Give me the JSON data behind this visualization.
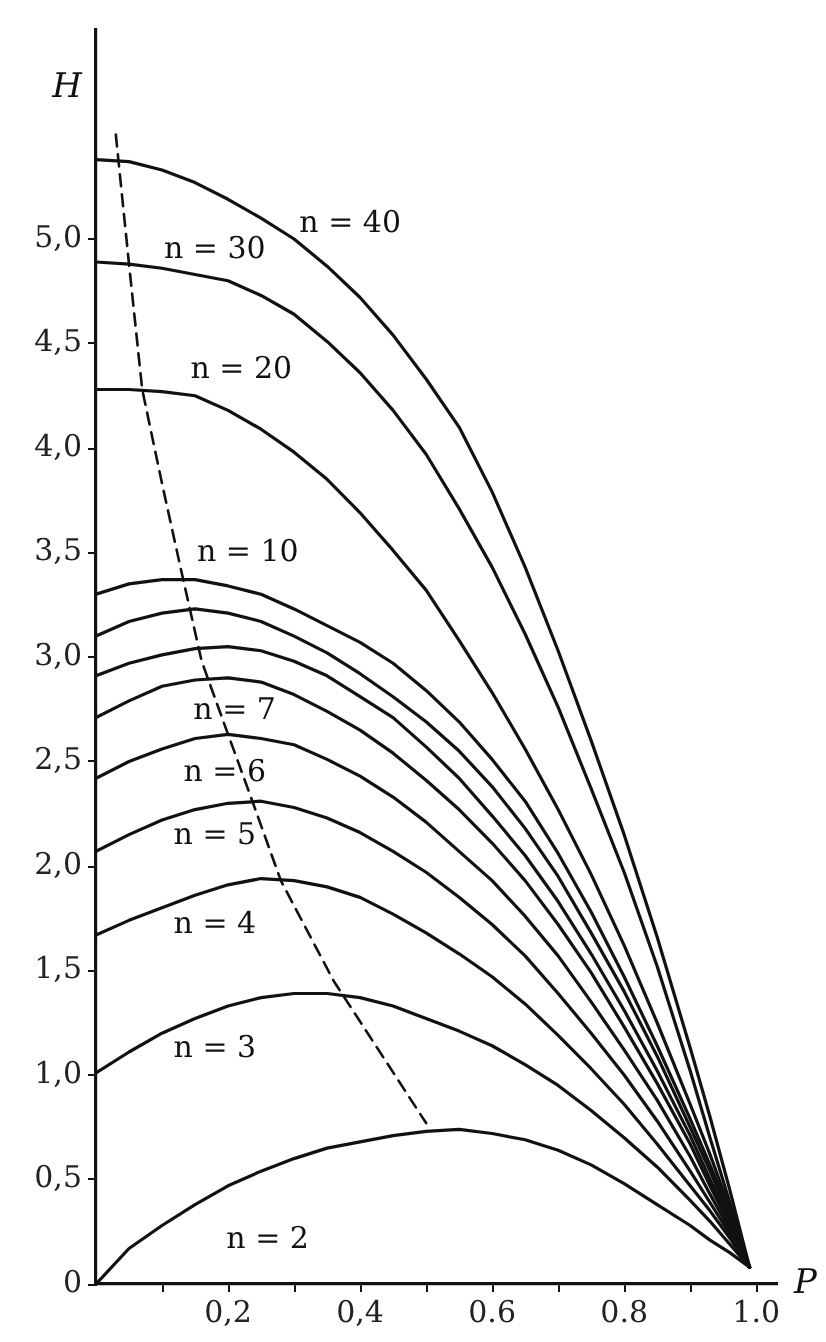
{
  "chart_data": {
    "type": "line",
    "xlabel": "P",
    "ylabel": "H",
    "xlim": [
      0,
      1.03
    ],
    "ylim": [
      0,
      6
    ],
    "x": [
      0,
      0.05,
      0.1,
      0.15,
      0.2,
      0.25,
      0.3,
      0.35,
      0.4,
      0.45,
      0.5,
      0.55,
      0.6,
      0.65,
      0.7,
      0.75,
      0.8,
      0.85,
      0.9,
      0.93,
      0.96,
      0.99
    ],
    "xticks": [
      {
        "value": 0.1,
        "label": null
      },
      {
        "value": 0.2,
        "label": "0,2"
      },
      {
        "value": 0.3,
        "label": null
      },
      {
        "value": 0.4,
        "label": "0,4"
      },
      {
        "value": 0.5,
        "label": null
      },
      {
        "value": 0.6,
        "label": "0.6"
      },
      {
        "value": 0.7,
        "label": null
      },
      {
        "value": 0.8,
        "label": "0.8"
      },
      {
        "value": 0.9,
        "label": null
      },
      {
        "value": 1.0,
        "label": "1.0"
      }
    ],
    "yticks": [
      0,
      {
        "value": 0.5,
        "label": "0,5"
      },
      {
        "value": 1,
        "label": "1,0"
      },
      {
        "value": 1.5,
        "label": "1,5"
      },
      {
        "value": 2,
        "label": "2,0"
      },
      {
        "value": 2.5,
        "label": "2,5"
      },
      {
        "value": 3,
        "label": "3,0"
      },
      {
        "value": 3.5,
        "label": "3,5"
      },
      {
        "value": 4,
        "label": "4,0"
      },
      {
        "value": 4.5,
        "label": "4,5"
      },
      {
        "value": 5,
        "label": "5,0"
      }
    ],
    "grid": false,
    "legend": false,
    "marker": "none",
    "series": [
      {
        "name": "n = 2",
        "color": "#111111",
        "values": [
          0,
          0.17,
          0.28,
          0.38,
          0.47,
          0.54,
          0.6,
          0.65,
          0.68,
          0.71,
          0.73,
          0.74,
          0.72,
          0.69,
          0.64,
          0.57,
          0.48,
          0.38,
          0.28,
          0.21,
          0.15,
          0.08
        ]
      },
      {
        "name": "n = 3",
        "color": "#111111",
        "values": [
          1.01,
          1.11,
          1.2,
          1.27,
          1.33,
          1.37,
          1.39,
          1.39,
          1.37,
          1.33,
          1.27,
          1.21,
          1.14,
          1.05,
          0.95,
          0.83,
          0.7,
          0.56,
          0.4,
          0.3,
          0.19,
          0.08
        ]
      },
      {
        "name": "n = 4",
        "color": "#111111",
        "values": [
          1.67,
          1.74,
          1.8,
          1.86,
          1.91,
          1.94,
          1.93,
          1.9,
          1.85,
          1.77,
          1.68,
          1.58,
          1.47,
          1.34,
          1.19,
          1.03,
          0.86,
          0.67,
          0.47,
          0.35,
          0.22,
          0.08
        ]
      },
      {
        "name": "n = 5",
        "color": "#111111",
        "values": [
          2.07,
          2.15,
          2.22,
          2.27,
          2.3,
          2.31,
          2.28,
          2.23,
          2.16,
          2.07,
          1.97,
          1.85,
          1.72,
          1.57,
          1.39,
          1.2,
          1.0,
          0.78,
          0.54,
          0.39,
          0.24,
          0.08
        ]
      },
      {
        "name": "n = 6",
        "color": "#111111",
        "values": [
          2.42,
          2.5,
          2.56,
          2.61,
          2.63,
          2.61,
          2.58,
          2.51,
          2.43,
          2.33,
          2.21,
          2.07,
          1.93,
          1.76,
          1.57,
          1.35,
          1.12,
          0.88,
          0.61,
          0.43,
          0.26,
          0.08
        ]
      },
      {
        "name": "n = 7",
        "color": "#111111",
        "values": [
          2.71,
          2.79,
          2.86,
          2.89,
          2.9,
          2.88,
          2.82,
          2.74,
          2.65,
          2.54,
          2.41,
          2.27,
          2.11,
          1.93,
          1.72,
          1.49,
          1.23,
          0.96,
          0.67,
          0.47,
          0.28,
          0.08
        ]
      },
      {
        "color": "#111111",
        "values": [
          2.91,
          2.97,
          3.01,
          3.04,
          3.05,
          3.03,
          2.98,
          2.91,
          2.81,
          2.71,
          2.57,
          2.42,
          2.24,
          2.05,
          1.83,
          1.58,
          1.31,
          1.02,
          0.71,
          0.5,
          0.3,
          0.08
        ]
      },
      {
        "color": "#111111",
        "values": [
          3.1,
          3.17,
          3.21,
          3.23,
          3.21,
          3.17,
          3.1,
          3.02,
          2.92,
          2.81,
          2.69,
          2.55,
          2.38,
          2.18,
          1.95,
          1.68,
          1.4,
          1.09,
          0.75,
          0.54,
          0.32,
          0.08
        ]
      },
      {
        "name": "n = 10",
        "color": "#111111",
        "values": [
          3.3,
          3.35,
          3.37,
          3.37,
          3.34,
          3.3,
          3.23,
          3.15,
          3.07,
          2.97,
          2.84,
          2.69,
          2.51,
          2.31,
          2.06,
          1.78,
          1.47,
          1.14,
          0.79,
          0.57,
          0.34,
          0.08
        ]
      },
      {
        "name": "n = 20",
        "color": "#111111",
        "values": [
          4.28,
          4.28,
          4.27,
          4.25,
          4.18,
          4.09,
          3.98,
          3.85,
          3.69,
          3.51,
          3.32,
          3.08,
          2.83,
          2.56,
          2.27,
          1.96,
          1.62,
          1.25,
          0.86,
          0.62,
          0.36,
          0.08
        ]
      },
      {
        "name": "n = 30",
        "color": "#111111",
        "values": [
          4.89,
          4.88,
          4.86,
          4.83,
          4.8,
          4.73,
          4.64,
          4.51,
          4.36,
          4.18,
          3.97,
          3.71,
          3.43,
          3.11,
          2.76,
          2.37,
          1.97,
          1.52,
          1.02,
          0.7,
          0.39,
          0.08
        ]
      },
      {
        "name": "n = 40",
        "color": "#111111",
        "values": [
          5.38,
          5.37,
          5.33,
          5.27,
          5.19,
          5.1,
          5.0,
          4.87,
          4.72,
          4.54,
          4.33,
          4.1,
          3.79,
          3.43,
          3.03,
          2.6,
          2.15,
          1.66,
          1.13,
          0.8,
          0.45,
          0.08
        ]
      },
      {
        "color": "#111111",
        "line_style": "dashed",
        "x": [
          0.03,
          0.05,
          0.07,
          0.1,
          0.13,
          0.16,
          0.2,
          0.23,
          0.28,
          0.36,
          0.5
        ],
        "values": [
          5.5,
          4.88,
          4.28,
          3.83,
          3.4,
          2.98,
          2.63,
          2.37,
          1.93,
          1.45,
          0.77
        ]
      }
    ]
  }
}
